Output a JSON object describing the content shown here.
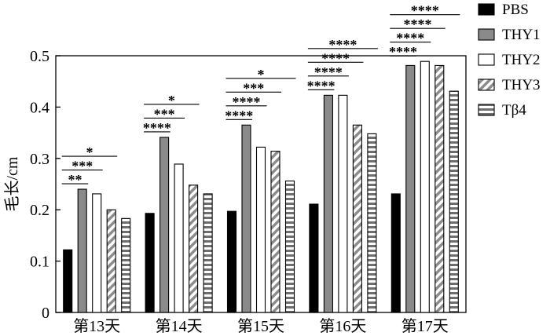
{
  "chart_data": {
    "type": "bar",
    "categories": [
      "第13天",
      "第14天",
      "第15天",
      "第16天",
      "第17天"
    ],
    "ylabel": "毛长/cm",
    "ylim": [
      0,
      0.5
    ],
    "yticks": [
      "0",
      "0.1",
      "0.2",
      "0.3",
      "0.4",
      "0.5"
    ],
    "legend_position": "right",
    "series": [
      {
        "name": "PBS",
        "pattern": "solid-black",
        "values": [
          0.122,
          0.193,
          0.197,
          0.211,
          0.231
        ]
      },
      {
        "name": "THY1",
        "pattern": "solid-gray",
        "values": [
          0.24,
          0.341,
          0.365,
          0.423,
          0.481
        ]
      },
      {
        "name": "THY2",
        "pattern": "white",
        "values": [
          0.231,
          0.289,
          0.322,
          0.423,
          0.489
        ]
      },
      {
        "name": "THY3",
        "pattern": "diagonal",
        "values": [
          0.2,
          0.248,
          0.314,
          0.365,
          0.481
        ]
      },
      {
        "name": "Tβ4",
        "pattern": "horizontal",
        "values": [
          0.183,
          0.231,
          0.256,
          0.348,
          0.431
        ]
      }
    ],
    "significance": [
      {
        "group": 0,
        "marks": [
          {
            "text": "**",
            "to_series": 1
          },
          {
            "text": "***",
            "to_series": 2
          },
          {
            "text": "*",
            "to_series": 3
          }
        ]
      },
      {
        "group": 1,
        "marks": [
          {
            "text": "****",
            "to_series": 1
          },
          {
            "text": "***",
            "to_series": 2
          },
          {
            "text": "*",
            "to_series": 3
          }
        ]
      },
      {
        "group": 2,
        "marks": [
          {
            "text": "****",
            "to_series": 1
          },
          {
            "text": "****",
            "to_series": 2
          },
          {
            "text": "***",
            "to_series": 3
          },
          {
            "text": "*",
            "to_series": 4
          }
        ]
      },
      {
        "group": 3,
        "marks": [
          {
            "text": "****",
            "to_series": 1
          },
          {
            "text": "****",
            "to_series": 2
          },
          {
            "text": "****",
            "to_series": 3
          },
          {
            "text": "****",
            "to_series": 4
          }
        ]
      },
      {
        "group": 4,
        "marks": [
          {
            "text": "****",
            "to_series": 1
          },
          {
            "text": "****",
            "to_series": 2
          },
          {
            "text": "****",
            "to_series": 3
          },
          {
            "text": "****",
            "to_series": 4
          }
        ]
      }
    ]
  }
}
